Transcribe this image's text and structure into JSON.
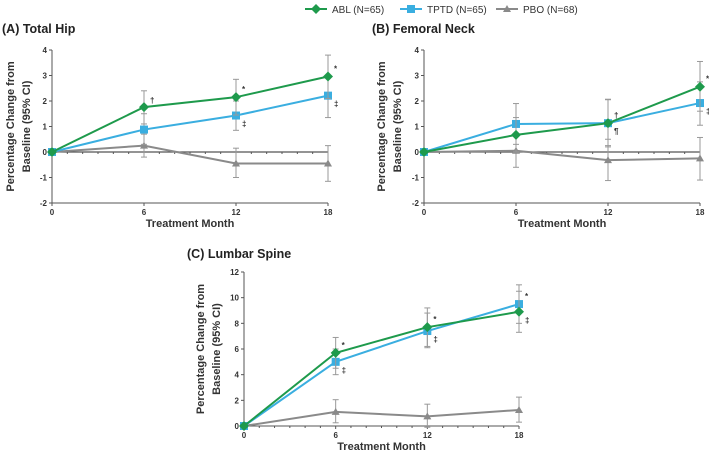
{
  "chart_data": {
    "type": "line",
    "legend": {
      "placement": "top-center",
      "entries": [
        "ABL (N=65)",
        "TPTD (N=65)",
        "PBO (N=68)"
      ]
    },
    "colors": {
      "ABL": "#1e9a4c",
      "TPTD": "#3aaee0",
      "PBO": "#8a8a8a"
    },
    "panels": [
      {
        "title": "(A) Total Hip",
        "xlabel": "Treatment Month",
        "ylabel": [
          "Percentage Change from",
          "Baseline (95% CI)"
        ],
        "x": [
          0,
          6,
          12,
          18
        ],
        "xticks": [
          "0",
          "6",
          "12",
          "18"
        ],
        "ylim": [
          -2,
          4
        ],
        "yticks": [
          "-2",
          "-1",
          "0",
          "1",
          "2",
          "3",
          "4"
        ],
        "series": [
          {
            "name": "ABL",
            "values": [
              0,
              1.76,
              2.15,
              2.96
            ],
            "ci": [
              [
                0,
                0
              ],
              [
                1.1,
                2.4
              ],
              [
                1.45,
                2.85
              ],
              [
                2.1,
                3.8
              ]
            ],
            "marks": [
              "",
              "†",
              "*",
              "*"
            ]
          },
          {
            "name": "TPTD",
            "values": [
              0,
              0.88,
              1.43,
              2.21
            ],
            "ci": [
              [
                0,
                0
              ],
              [
                0.3,
                1.5
              ],
              [
                0.85,
                2.0
              ],
              [
                1.35,
                3.0
              ]
            ],
            "marks": [
              "",
              "",
              "‡",
              "‡"
            ]
          },
          {
            "name": "PBO",
            "values": [
              0,
              0.25,
              -0.45,
              -0.45
            ],
            "ci": [
              [
                0,
                0
              ],
              [
                -0.2,
                0.7
              ],
              [
                -1.0,
                0.15
              ],
              [
                -1.15,
                0.25
              ]
            ],
            "marks": [
              "",
              "",
              "",
              ""
            ]
          }
        ]
      },
      {
        "title": "(B) Femoral Neck",
        "xlabel": "Treatment Month",
        "ylabel": [
          "Percentage Change from",
          "Baseline (95% CI)"
        ],
        "x": [
          0,
          6,
          12,
          18
        ],
        "xticks": [
          "0",
          "6",
          "12",
          "18"
        ],
        "ylim": [
          -2,
          4
        ],
        "yticks": [
          "-2",
          "-1",
          "0",
          "1",
          "2",
          "3",
          "4"
        ],
        "series": [
          {
            "name": "ABL",
            "values": [
              0,
              0.67,
              1.13,
              2.56
            ],
            "ci": [
              [
                0,
                0
              ],
              [
                0,
                1.35
              ],
              [
                0.25,
                2.05
              ],
              [
                1.6,
                3.55
              ]
            ],
            "marks": [
              "",
              "",
              "¶",
              "*"
            ]
          },
          {
            "name": "TPTD",
            "values": [
              0,
              1.1,
              1.13,
              1.92
            ],
            "ci": [
              [
                0,
                0
              ],
              [
                0.3,
                1.9
              ],
              [
                0.2,
                2.07
              ],
              [
                1.05,
                2.75
              ]
            ],
            "marks": [
              "",
              "",
              "†",
              "‡"
            ]
          },
          {
            "name": "PBO",
            "values": [
              0,
              0.05,
              -0.32,
              -0.25
            ],
            "ci": [
              [
                0,
                0
              ],
              [
                -0.6,
                0.65
              ],
              [
                -1.12,
                0.5
              ],
              [
                -1.1,
                0.57
              ]
            ],
            "marks": [
              "",
              "",
              "",
              ""
            ]
          }
        ]
      },
      {
        "title": "(C) Lumbar Spine",
        "xlabel": "Treatment Month",
        "ylabel": [
          "Percentage Change from",
          "Baseline (95% CI)"
        ],
        "x": [
          0,
          6,
          12,
          18
        ],
        "xticks": [
          "0",
          "6",
          "12",
          "18"
        ],
        "ylim": [
          0,
          12
        ],
        "yticks": [
          "0",
          "2",
          "4",
          "6",
          "8",
          "10",
          "12"
        ],
        "series": [
          {
            "name": "ABL",
            "values": [
              0,
              5.7,
              7.7,
              8.9
            ],
            "ci": [
              [
                0,
                0
              ],
              [
                4.5,
                6.9
              ],
              [
                6.2,
                9.2
              ],
              [
                7.3,
                10.5
              ]
            ],
            "marks": [
              "",
              "*",
              "*",
              "‡"
            ]
          },
          {
            "name": "TPTD",
            "values": [
              0,
              5.0,
              7.4,
              9.5
            ],
            "ci": [
              [
                0,
                0
              ],
              [
                4.0,
                6.0
              ],
              [
                6.1,
                8.8
              ],
              [
                8.0,
                11.0
              ]
            ],
            "marks": [
              "",
              "‡",
              "‡",
              "*"
            ]
          },
          {
            "name": "PBO",
            "values": [
              0,
              1.1,
              0.75,
              1.25
            ],
            "ci": [
              [
                0,
                0
              ],
              [
                0.25,
                2.05
              ],
              [
                -0.1,
                1.7
              ],
              [
                0.3,
                2.25
              ]
            ],
            "marks": [
              "",
              "",
              "",
              ""
            ]
          }
        ]
      }
    ]
  }
}
